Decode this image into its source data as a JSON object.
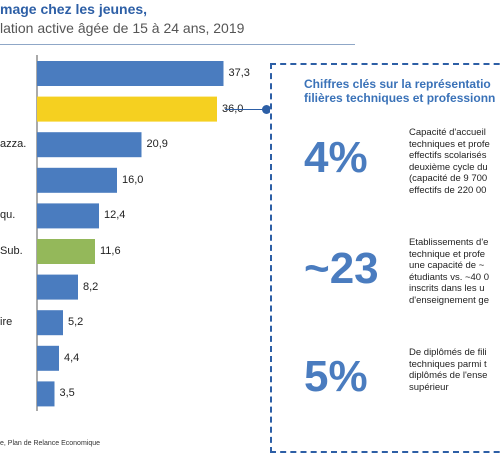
{
  "header": {
    "title_fragment": "mage chez les jeunes,",
    "subtitle_fragment": "lation active âgée de 15 à 24 ans, 2019"
  },
  "chart_data": {
    "type": "bar",
    "orientation": "horizontal",
    "categories": [
      "",
      "",
      "azza.",
      "",
      "qu.",
      "Sub.",
      "",
      "ire",
      "",
      ""
    ],
    "values": [
      37.3,
      36.0,
      20.9,
      16.0,
      12.4,
      11.6,
      8.2,
      5.2,
      4.4,
      3.5
    ],
    "value_labels": [
      "37,3",
      "36,0",
      "20,9",
      "16,0",
      "12,4",
      "11,6",
      "8,2",
      "5,2",
      "4,4",
      "3,5"
    ],
    "bar_colors": [
      "#4a7cbf",
      "#f5d020",
      "#4a7cbf",
      "#4a7cbf",
      "#4a7cbf",
      "#94b85a",
      "#4a7cbf",
      "#4a7cbf",
      "#4a7cbf",
      "#4a7cbf"
    ],
    "xlim": [
      0,
      40
    ],
    "grid": false,
    "legend": "none"
  },
  "panel": {
    "title_line1": "Chiffres clés sur la représentatio",
    "title_line2": "filières techniques et professionn",
    "stats": [
      {
        "value": "4%",
        "lines": [
          "Capacité d'accueil",
          "techniques et profe",
          "effectifs scolarisés",
          "deuxième cycle du",
          "(capacité de 9 700",
          "effectifs de 220 00"
        ]
      },
      {
        "value": "~23",
        "lines": [
          "Etablissements d'e",
          "technique et profe",
          "une capacité de ~",
          "étudiants vs. ~40 0",
          "inscrits dans les u",
          "d'enseignement ge"
        ]
      },
      {
        "value": "5%",
        "lines": [
          "De diplômés de fili",
          "techniques parmi t",
          "diplômés de l'ense",
          "supérieur"
        ]
      }
    ]
  },
  "footer": {
    "text": "e, Plan de Relance Economique"
  },
  "colors": {
    "accent_blue": "#2d5fa6",
    "bar_blue": "#4a7cbf",
    "highlight_yellow": "#f5d020",
    "highlight_green": "#94b85a"
  }
}
